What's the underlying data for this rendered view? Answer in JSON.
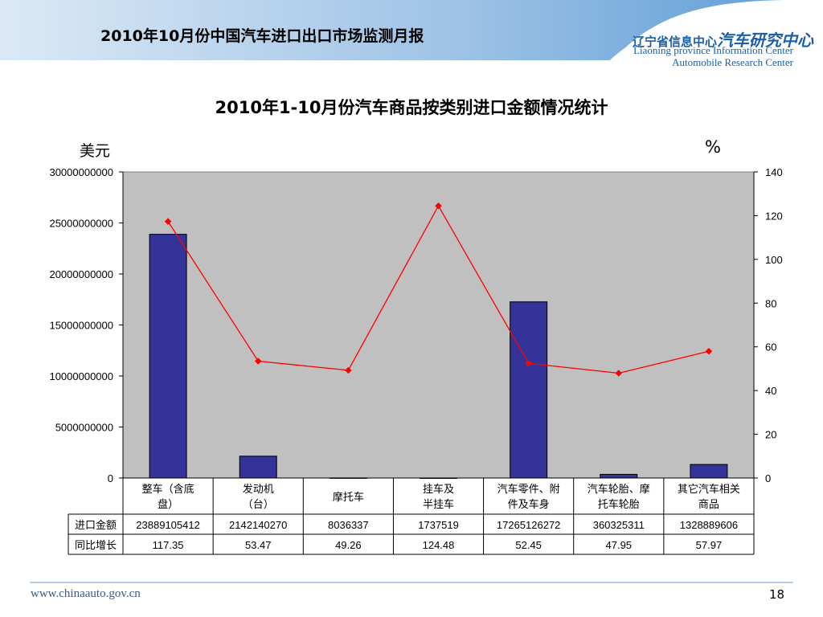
{
  "header": {
    "title": "2010年10月份中国汽车进口出口市场监测月报",
    "org_cn_small": "辽宁省信息中心",
    "org_cn_big": "汽车研究中心",
    "org_en_1": "Liaoning province Information Center",
    "org_en_2": "Automobile Research Center",
    "accent": "#5b9bd5"
  },
  "footer": {
    "url": "www.chinaauto.gov.cn",
    "page": "18"
  },
  "chart_data": {
    "type": "bar",
    "title": "2010年1-10月份汽车商品按类别进口金额情况统计",
    "ylabel": "美元",
    "y2label": "%",
    "ylim": [
      0,
      30000000000
    ],
    "y_ticks": [
      "0",
      "5000000000",
      "10000000000",
      "15000000000",
      "20000000000",
      "25000000000",
      "30000000000"
    ],
    "y2lim": [
      0,
      140
    ],
    "y2_ticks": [
      "0",
      "20",
      "40",
      "60",
      "80",
      "100",
      "120",
      "140"
    ],
    "categories": [
      "整车（含底盘）",
      "发动机（台）",
      "摩托车",
      "挂车及半挂车",
      "汽车零件、附件及车身",
      "汽车轮胎、摩托车轮胎",
      "其它汽车相关商品"
    ],
    "series": [
      {
        "name": "进口金额",
        "type": "bar",
        "axis": "left",
        "color": "#333399",
        "values": [
          23889105412,
          2142140270,
          8036337,
          1737519,
          17265126272,
          360325311,
          1328889606
        ],
        "labels": [
          "23889105412",
          "2142140270",
          "8036337",
          "1737519",
          "17265126272",
          "360325311",
          "1328889606"
        ]
      },
      {
        "name": "同比增长",
        "type": "line",
        "axis": "right",
        "color": "#ff0000",
        "values": [
          117.35,
          53.47,
          49.26,
          124.48,
          52.45,
          47.95,
          57.97
        ],
        "labels": [
          "117.35",
          "53.47",
          "49.26",
          "124.48",
          "52.45",
          "47.95",
          "57.97"
        ]
      }
    ],
    "plot_background": "#c0c0c0",
    "grid": false,
    "legend": "data-table"
  }
}
